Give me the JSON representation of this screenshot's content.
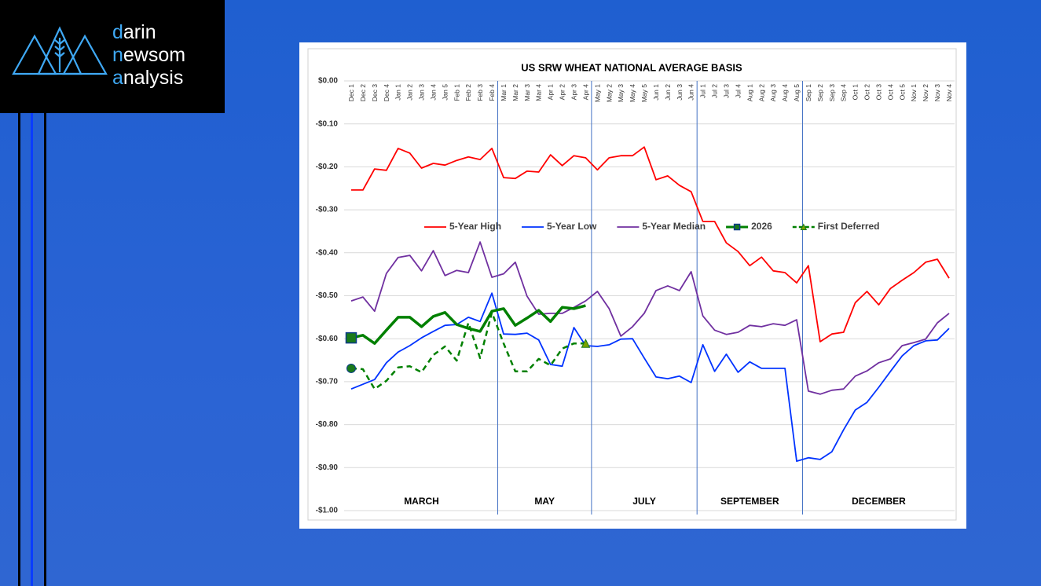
{
  "logo": [
    "darin",
    "newsom",
    "analysis"
  ],
  "chart_data": {
    "type": "line",
    "title": "US SRW WHEAT NATIONAL AVERAGE BASIS",
    "categories": [
      "Dec 1",
      "Dec 2",
      "Dec 3",
      "Dec 4",
      "Jan 1",
      "Jan 2",
      "Jan 3",
      "Jan 4",
      "Jan 5",
      "Feb 1",
      "Feb 2",
      "Feb 3",
      "Feb 4",
      "Mar 1",
      "Mar 2",
      "Mar 3",
      "Mar 4",
      "Apr 1",
      "Apr 2",
      "Apr 3",
      "Apr 4",
      "May 1",
      "May 2",
      "May 3",
      "May 4",
      "May 5",
      "Jun 1",
      "Jun 2",
      "Jun 3",
      "Jun 4",
      "Jul 1",
      "Jul 2",
      "Jul 3",
      "Jul 4",
      "Aug 1",
      "Aug 2",
      "Aug 3",
      "Aug 4",
      "Aug 5",
      "Sep 1",
      "Sep 2",
      "Sep 3",
      "Sep 4",
      "Oct 1",
      "Oct 2",
      "Oct 3",
      "Oct 4",
      "Oct 5",
      "Nov 1",
      "Nov 2",
      "Nov 3",
      "Nov 4"
    ],
    "series": [
      {
        "name": "5-Year High",
        "color": "#ff0000",
        "width": 1.8,
        "values": [
          -0.254,
          -0.254,
          -0.205,
          -0.208,
          -0.157,
          -0.168,
          -0.203,
          -0.192,
          -0.196,
          -0.185,
          -0.177,
          -0.183,
          -0.157,
          -0.225,
          -0.227,
          -0.21,
          -0.212,
          -0.172,
          -0.197,
          -0.174,
          -0.179,
          -0.207,
          -0.179,
          -0.174,
          -0.174,
          -0.154,
          -0.23,
          -0.221,
          -0.243,
          -0.258,
          -0.327,
          -0.327,
          -0.377,
          -0.397,
          -0.43,
          -0.41,
          -0.442,
          -0.446,
          -0.47,
          -0.43,
          -0.607,
          -0.589,
          -0.585,
          -0.516,
          -0.49,
          -0.521,
          -0.483,
          -0.464,
          -0.446,
          -0.422,
          -0.415,
          -0.459
        ]
      },
      {
        "name": "5-Year Low",
        "color": "#0033ff",
        "width": 1.8,
        "values": [
          -0.717,
          -0.706,
          -0.695,
          -0.656,
          -0.631,
          -0.616,
          -0.598,
          -0.583,
          -0.569,
          -0.567,
          -0.55,
          -0.56,
          -0.494,
          -0.589,
          -0.59,
          -0.587,
          -0.603,
          -0.66,
          -0.664,
          -0.574,
          -0.616,
          -0.618,
          -0.614,
          -0.601,
          -0.6,
          -0.645,
          -0.689,
          -0.693,
          -0.687,
          -0.702,
          -0.614,
          -0.676,
          -0.636,
          -0.678,
          -0.654,
          -0.669,
          -0.669,
          -0.669,
          -0.885,
          -0.877,
          -0.881,
          -0.863,
          -0.812,
          -0.766,
          -0.748,
          -0.713,
          -0.676,
          -0.64,
          -0.616,
          -0.605,
          -0.603,
          -0.576
        ]
      },
      {
        "name": "5-Year Median",
        "color": "#7030a0",
        "width": 1.8,
        "values": [
          -0.512,
          -0.503,
          -0.536,
          -0.448,
          -0.411,
          -0.406,
          -0.442,
          -0.395,
          -0.453,
          -0.441,
          -0.446,
          -0.375,
          -0.457,
          -0.449,
          -0.422,
          -0.501,
          -0.543,
          -0.541,
          -0.541,
          -0.527,
          -0.512,
          -0.49,
          -0.53,
          -0.594,
          -0.572,
          -0.541,
          -0.488,
          -0.477,
          -0.488,
          -0.444,
          -0.547,
          -0.58,
          -0.59,
          -0.585,
          -0.569,
          -0.572,
          -0.565,
          -0.569,
          -0.556,
          -0.722,
          -0.729,
          -0.72,
          -0.717,
          -0.687,
          -0.675,
          -0.656,
          -0.647,
          -0.616,
          -0.609,
          -0.601,
          -0.563,
          -0.541
        ]
      },
      {
        "name": "2026",
        "color": "#008000",
        "width": 3.5,
        "marker": "square",
        "values": [
          -0.598,
          -0.592,
          -0.611,
          -0.58,
          -0.55,
          -0.55,
          -0.572,
          -0.548,
          -0.539,
          -0.567,
          -0.576,
          -0.583,
          -0.536,
          -0.53,
          -0.569,
          -0.552,
          -0.534,
          -0.56,
          -0.527,
          -0.53,
          -0.523,
          null,
          null,
          null,
          null,
          null,
          null,
          null,
          null,
          null,
          null,
          null,
          null,
          null,
          null,
          null,
          null,
          null,
          null,
          null,
          null,
          null,
          null,
          null,
          null,
          null,
          null,
          null,
          null,
          null,
          null,
          null
        ]
      },
      {
        "name": "First Deferred",
        "color": "#008000",
        "width": 2.5,
        "dash": true,
        "marker": "triangle",
        "values": [
          -0.669,
          -0.671,
          -0.717,
          -0.698,
          -0.667,
          -0.664,
          -0.678,
          -0.638,
          -0.618,
          -0.651,
          -0.563,
          -0.645,
          -0.539,
          -0.611,
          -0.676,
          -0.676,
          -0.647,
          -0.662,
          -0.623,
          -0.611,
          -0.611,
          null,
          null,
          null,
          null,
          null,
          null,
          null,
          null,
          null,
          null,
          null,
          null,
          null,
          null,
          null,
          null,
          null,
          null,
          null,
          null,
          null,
          null,
          null,
          null,
          null,
          null,
          null,
          null,
          null,
          null,
          null
        ]
      }
    ],
    "ylim": [
      -1,
      0
    ],
    "yticks": [
      {
        "value": 0,
        "label": "$0.00"
      },
      {
        "value": -0.1,
        "label": "-$0.10"
      },
      {
        "value": -0.2,
        "label": "-$0.20"
      },
      {
        "value": -0.3,
        "label": "-$0.30"
      },
      {
        "value": -0.4,
        "label": "-$0.40"
      },
      {
        "value": -0.5,
        "label": "-$0.50"
      },
      {
        "value": -0.6,
        "label": "-$0.60"
      },
      {
        "value": -0.7,
        "label": "-$0.70"
      },
      {
        "value": -0.8,
        "label": "-$0.80"
      },
      {
        "value": -0.9,
        "label": "-$0.90"
      },
      {
        "value": -1,
        "label": "-$1.00"
      }
    ],
    "grid": true,
    "sections": [
      {
        "label": "MARCH",
        "first": "Dec 1"
      },
      {
        "label": "MAY",
        "first": "Mar 1"
      },
      {
        "label": "JULY",
        "first": "May 1"
      },
      {
        "label": "SEPTEMBER",
        "first": "Jul 1"
      },
      {
        "label": "DECEMBER",
        "first": "Sep 1"
      }
    ]
  }
}
